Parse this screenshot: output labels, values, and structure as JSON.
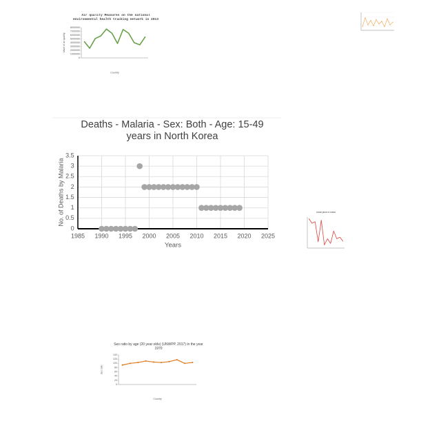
{
  "chart_data": [
    {
      "type": "line",
      "title": "Air quality Measures on the national environmental health tracking network in 2013",
      "xlabel": "Country",
      "ylabel": "Value of air quality",
      "categories": [
        null,
        null,
        null,
        null,
        null,
        null,
        null,
        null,
        null,
        null,
        null,
        null
      ],
      "series": [
        {
          "name": null,
          "color": "#6a9f4a",
          "values": [
            4360000,
            2550000,
            5100000,
            5800000,
            7600000,
            6500000,
            3800000,
            7500000,
            6500000,
            4000000,
            3450000,
            5600000
          ]
        }
      ],
      "ylim": [
        0,
        8000000
      ],
      "yticks": [
        0,
        1000000,
        2000000,
        3000000,
        4000000,
        5000000,
        6000000,
        7000000,
        8000000
      ],
      "grid": false
    },
    {
      "type": "line",
      "categories": [
        null,
        null,
        null,
        null,
        null,
        null,
        null,
        null,
        null,
        null,
        null,
        null
      ],
      "series": [
        {
          "name": null,
          "color": "#f0a040",
          "values": [
            20,
            70,
            30,
            55,
            25,
            60,
            35,
            50,
            20,
            65,
            30,
            45
          ]
        }
      ],
      "ylim": [
        0,
        100
      ],
      "grid": true
    },
    {
      "type": "scatter",
      "title": "Deaths - Malaria - Sex: Both - Age: 15-49 years in North Korea",
      "xlabel": "Years",
      "ylabel": "No. of Deaths by Malaria",
      "x": [
        1990,
        1991,
        1992,
        1993,
        1994,
        1995,
        1996,
        1997,
        1998,
        1999,
        2000,
        2001,
        2002,
        2003,
        2004,
        2005,
        2006,
        2007,
        2008,
        2009,
        2010,
        2011,
        2012,
        2013,
        2014,
        2015,
        2016,
        2017,
        2018,
        2019
      ],
      "series": [
        {
          "name": null,
          "color": "#a6a6a6",
          "values": [
            0,
            0,
            0,
            0,
            0,
            0,
            0,
            0,
            3,
            2,
            2,
            2,
            2,
            2,
            2,
            2,
            2,
            2,
            2,
            2,
            2,
            1,
            1,
            1,
            1,
            1,
            1,
            1,
            1,
            1
          ]
        }
      ],
      "xlim": [
        1985,
        2025
      ],
      "xticks": [
        1985,
        1990,
        1995,
        2000,
        2005,
        2010,
        2015,
        2020,
        2025
      ],
      "ylim": [
        0,
        3.5
      ],
      "yticks": [
        0,
        0.5,
        1,
        1.5,
        2,
        2.5,
        3,
        3.5
      ],
      "grid": true
    },
    {
      "type": "line",
      "title": "Stock price of MMM",
      "categories": [
        null,
        null,
        null,
        null,
        null,
        null,
        null,
        null,
        null,
        null,
        null,
        null
      ],
      "series": [
        {
          "name": null,
          "color": "#d9423a",
          "values": [
            95,
            80,
            85,
            20,
            90,
            10,
            30,
            15,
            55,
            30,
            35,
            22
          ]
        }
      ],
      "ylim": [
        0,
        100
      ],
      "grid": false
    },
    {
      "type": "line",
      "title": "Sex ratio by age (20 year olds) (UNWPP, 2017) in the year 1970",
      "xlabel": "Country",
      "ylabel": "Sex ratio",
      "categories": [
        null,
        null,
        null,
        null,
        null,
        null,
        null,
        null,
        null,
        null
      ],
      "series": [
        {
          "name": null,
          "color": "#e07b20",
          "values": [
            92,
            100,
            104,
            111,
            106,
            104,
            108,
            117,
            100,
            104
          ]
        }
      ],
      "ylim": [
        0,
        140
      ],
      "yticks": [
        0,
        20,
        40,
        60,
        80,
        100,
        120,
        140
      ],
      "grid": false
    }
  ]
}
